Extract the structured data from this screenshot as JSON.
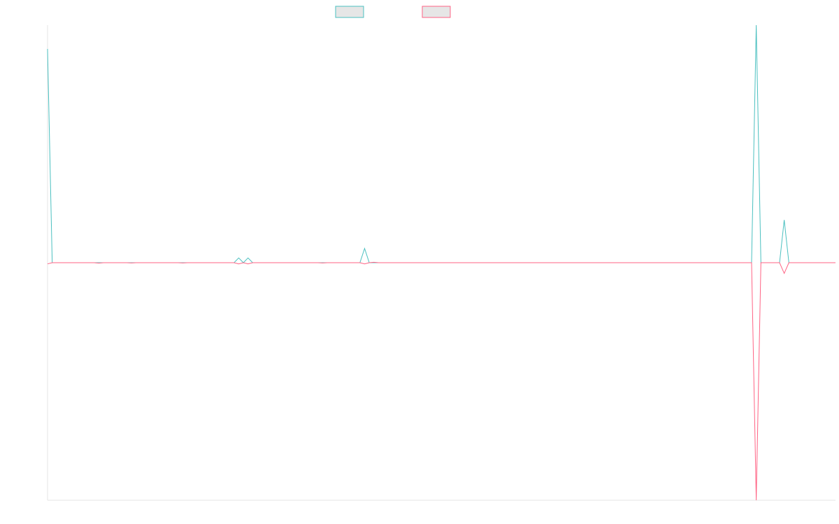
{
  "chart_data": {
    "type": "line",
    "title": "",
    "xlabel": "",
    "ylabel": "",
    "ylim": [
      -1,
      1
    ],
    "grid": false,
    "legend_position": "top-center",
    "series": [
      {
        "color": "#4bc0c0",
        "legend_fill": "#e6e6e6",
        "values": [
          0.9,
          0,
          0,
          0,
          0,
          0,
          0,
          0,
          0,
          0,
          0,
          0,
          0,
          0,
          0,
          0,
          0,
          0,
          0,
          0,
          0,
          0,
          0,
          0,
          0,
          0,
          0,
          0,
          0,
          0,
          0,
          0,
          0,
          0,
          0,
          0,
          0,
          0,
          0,
          0,
          0,
          0.02,
          0,
          0.02,
          0,
          0,
          0,
          0,
          0,
          0,
          0,
          0,
          0,
          0,
          0,
          0,
          0,
          0,
          0,
          0,
          0,
          0,
          0,
          0,
          0,
          0,
          0,
          0,
          0.06,
          0,
          0,
          0,
          0,
          0,
          0,
          0,
          0,
          0,
          0,
          0,
          0,
          0,
          0,
          0,
          0,
          0,
          0,
          0,
          0,
          0,
          0,
          0,
          0,
          0,
          0,
          0,
          0,
          0,
          0,
          0,
          0,
          0,
          0,
          0,
          0,
          0,
          0,
          0,
          0,
          0,
          0,
          0,
          0,
          0,
          0,
          0,
          0,
          0,
          0,
          0,
          0,
          0,
          0,
          0,
          0,
          0,
          0,
          0,
          0,
          0,
          0,
          0,
          0,
          0,
          0,
          0,
          0,
          0,
          0,
          0,
          0,
          0,
          0,
          0,
          0,
          0,
          0,
          0,
          0,
          0,
          0,
          0,
          1.0,
          0,
          0,
          0,
          0,
          0,
          0.18,
          0,
          0,
          0,
          0,
          0,
          0,
          0,
          0,
          0,
          0,
          0
        ]
      },
      {
        "color": "#ff6384",
        "legend_fill": "#e6e6e6",
        "values": [
          -0.005,
          0,
          0,
          0,
          0,
          0,
          0,
          0,
          0,
          0,
          0,
          -0.002,
          0,
          0,
          0,
          0,
          0,
          0,
          -0.001,
          0,
          0,
          0,
          0,
          0,
          0,
          0,
          0,
          0,
          0,
          -0.001,
          0,
          0,
          0,
          0,
          0,
          0,
          0,
          0,
          0,
          0,
          0,
          -0.005,
          0,
          -0.005,
          0,
          0,
          0,
          0,
          0,
          0,
          0,
          0,
          0,
          0,
          0,
          0,
          0,
          0,
          0,
          -0.001,
          0,
          0,
          0,
          0,
          0,
          0,
          0,
          0,
          -0.005,
          0,
          0.002,
          0,
          0,
          0,
          0,
          0,
          0,
          0,
          0,
          0,
          0,
          0,
          0,
          0,
          0,
          0,
          0,
          0,
          0,
          0,
          0,
          0,
          0,
          0,
          0,
          0,
          0,
          0,
          0,
          0,
          0,
          0,
          0,
          0,
          0,
          0,
          0,
          0,
          0,
          0,
          0,
          0,
          0,
          0,
          0,
          0,
          0,
          0,
          0,
          0,
          0,
          0,
          0,
          0,
          0,
          0,
          0,
          0,
          0,
          0,
          0,
          0,
          0,
          0,
          0,
          0,
          0,
          0,
          0,
          0,
          0,
          0,
          0,
          0,
          0,
          0,
          0,
          0,
          0,
          0,
          0,
          0,
          -1.0,
          0,
          0,
          0,
          0,
          0,
          -0.045,
          0,
          0,
          0,
          0,
          0,
          0,
          0,
          0,
          0,
          0,
          0
        ]
      }
    ]
  }
}
